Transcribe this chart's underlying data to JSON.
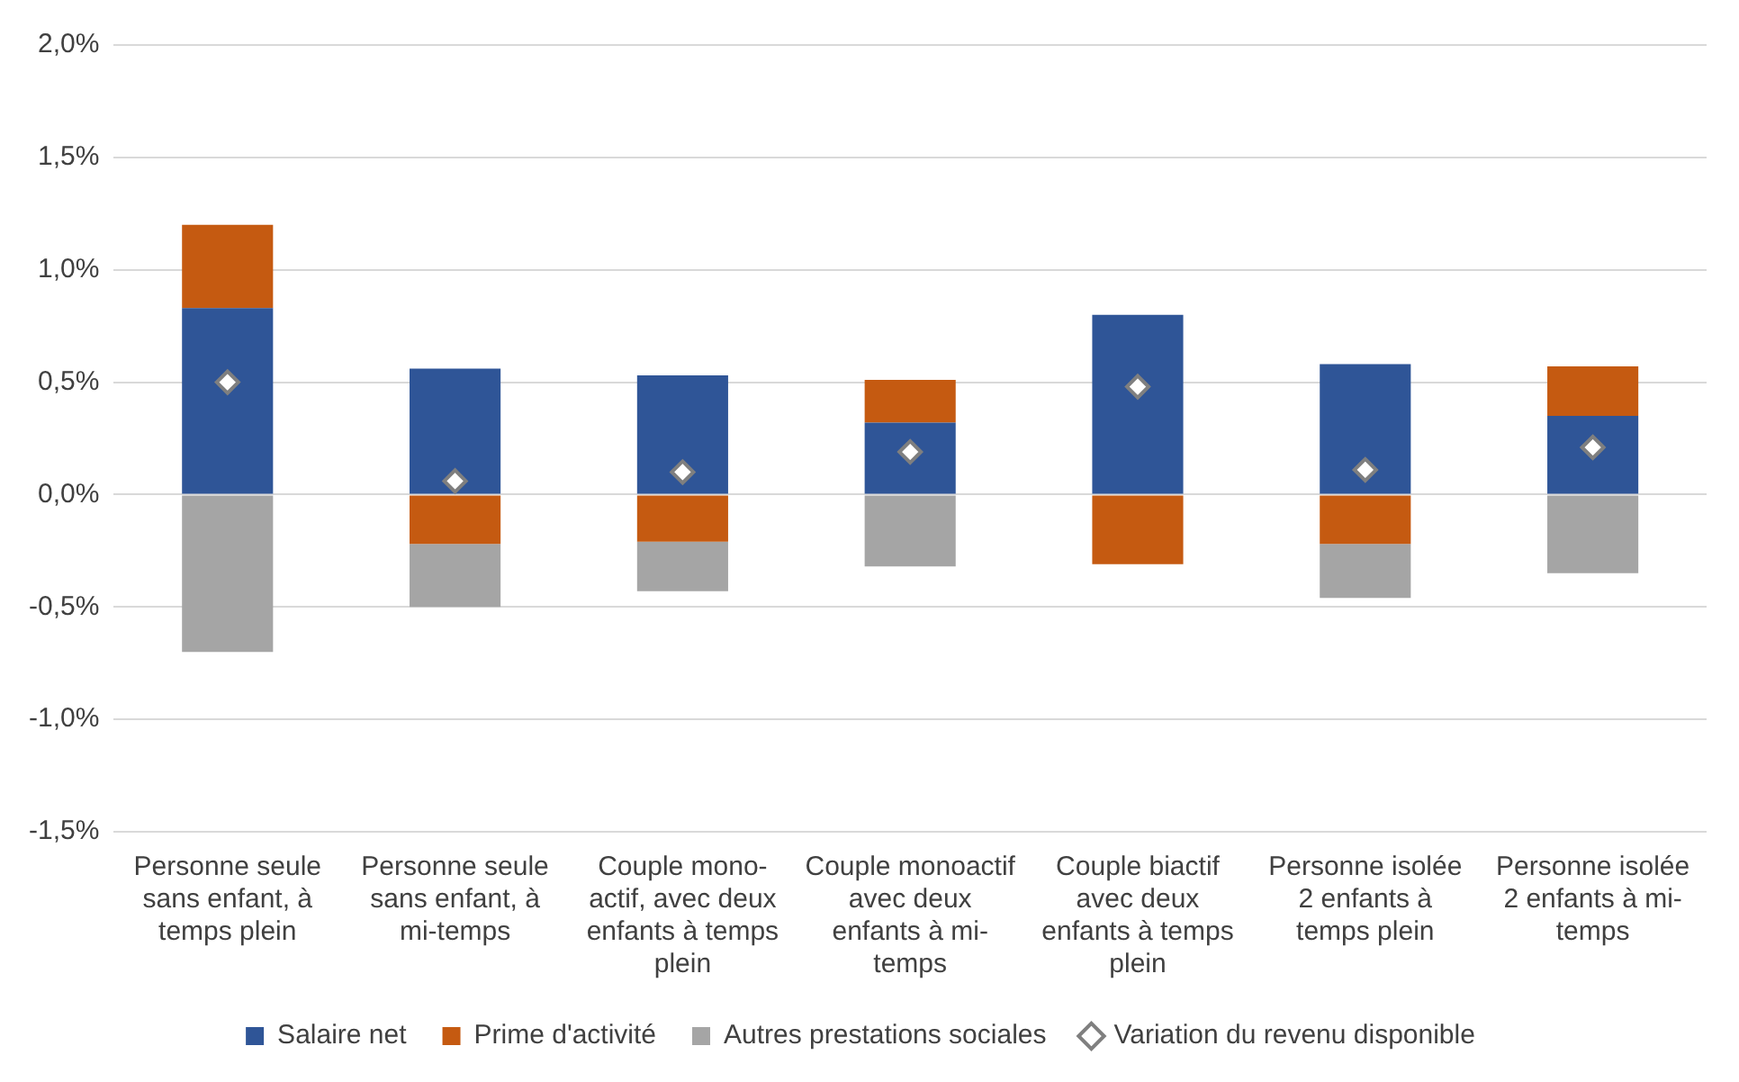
{
  "chart_data": {
    "type": "bar",
    "stacked": true,
    "categories": [
      "Personne seule sans enfant, à temps plein",
      "Personne seule sans enfant, à mi-temps",
      "Couple mono-actif, avec deux enfants à temps plein",
      "Couple monoactif avec deux enfants à mi-temps",
      "Couple biactif avec deux enfants à temps plein",
      "Personne isolée 2 enfants à temps plein",
      "Personne isolée 2 enfants à mi-temps"
    ],
    "series": [
      {
        "name": "Salaire net",
        "color": "#2f5597",
        "values": [
          0.83,
          0.56,
          0.53,
          0.32,
          0.8,
          0.58,
          0.35
        ]
      },
      {
        "name": "Prime d'activité",
        "color": "#c55a11",
        "values": [
          0.37,
          -0.22,
          -0.21,
          0.19,
          -0.31,
          -0.22,
          0.22
        ]
      },
      {
        "name": "Autres prestations sociales",
        "color": "#a5a5a5",
        "values": [
          -0.7,
          -0.28,
          -0.22,
          -0.32,
          null,
          -0.24,
          -0.35
        ]
      },
      {
        "name": "Variation du revenu disponible",
        "type": "scatter",
        "marker": "diamond",
        "color": "#ffffff",
        "x": [
          "Personne seule sans enfant, à temps plein",
          "Personne seule sans enfant, à mi-temps",
          "Couple mono-actif, avec deux enfants à temps plein",
          "Couple monoactif avec deux enfants à mi-temps",
          "Couple biactif avec deux enfants à temps plein",
          "Personne isolée 2 enfants à temps plein",
          "Personne isolée 2 enfants à mi-temps"
        ],
        "values": [
          0.5,
          0.06,
          0.1,
          0.19,
          0.48,
          0.11,
          0.21
        ]
      }
    ],
    "ylim": [
      -1.5,
      2
    ],
    "yticks": [
      {
        "value": -1.5,
        "label": "-1,5%"
      },
      {
        "value": -1,
        "label": "-1,0%"
      },
      {
        "value": -0.5,
        "label": "-0,5%"
      },
      {
        "value": 0,
        "label": "0,0%"
      },
      {
        "value": 0.5,
        "label": "0,5%"
      },
      {
        "value": 1,
        "label": "1,0%"
      },
      {
        "value": 1.5,
        "label": "1,5%"
      },
      {
        "value": 2,
        "label": "2,0%"
      }
    ],
    "grid": "y",
    "legend": "bottom"
  }
}
